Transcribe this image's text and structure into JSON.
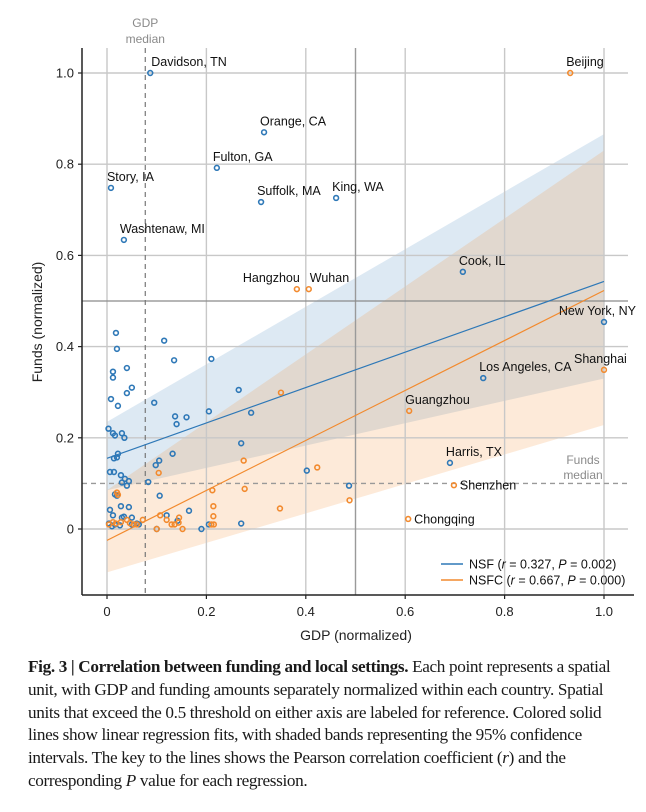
{
  "chart_data": {
    "type": "scatter",
    "title": "",
    "xlabel": "GDP (normalized)",
    "ylabel": "Funds (normalized)",
    "xlim": [
      -0.05,
      1.05
    ],
    "ylim": [
      -0.14,
      1.05
    ],
    "xticks": [
      0,
      0.2,
      0.4,
      0.6,
      0.8,
      1.0
    ],
    "xtick_labels": [
      "0",
      "0.2",
      "0.4",
      "0.6",
      "0.8",
      "1.0"
    ],
    "yticks": [
      0,
      0.2,
      0.4,
      0.6,
      0.8,
      1.0
    ],
    "ytick_labels": [
      "0",
      "0.2",
      "0.4",
      "0.6",
      "0.8",
      "1.0"
    ],
    "grid": true,
    "threshold": 0.5,
    "medians": {
      "gdp": 0.077,
      "gdp_label_line1": "GDP",
      "gdp_label_line2": "median",
      "funds": 0.1,
      "funds_label_line1": "Funds",
      "funds_label_line2": "median"
    },
    "legend_position": "bottom-right",
    "series": [
      {
        "name": "NSF",
        "legend": "NSF (r = 0.327, P = 0.002)",
        "legend_prefix": "NSF (",
        "r": "0.327",
        "p": "0.002",
        "color": "#2e78b7",
        "band_color": "#cfe0f0",
        "fit": {
          "x0": 0.0,
          "y0": 0.155,
          "x1": 1.0,
          "y1": 0.543
        },
        "ci": {
          "x": [
            0.0,
            1.0
          ],
          "lower": [
            0.085,
            0.33
          ],
          "upper": [
            0.235,
            0.866
          ]
        },
        "labeled_points": [
          {
            "name": "Davidson, TN",
            "x": 0.087,
            "y": 1.0,
            "anchor": "right-up"
          },
          {
            "name": "Orange, CA",
            "x": 0.316,
            "y": 0.87,
            "anchor": "above"
          },
          {
            "name": "Fulton, GA",
            "x": 0.221,
            "y": 0.792,
            "anchor": "above"
          },
          {
            "name": "Story, IA",
            "x": 0.008,
            "y": 0.748,
            "anchor": "above"
          },
          {
            "name": "Suffolk, MA",
            "x": 0.31,
            "y": 0.717,
            "anchor": "above"
          },
          {
            "name": "King, WA",
            "x": 0.461,
            "y": 0.726,
            "anchor": "above"
          },
          {
            "name": "Washtenaw, MI",
            "x": 0.034,
            "y": 0.634,
            "anchor": "above"
          },
          {
            "name": "Cook, IL",
            "x": 0.716,
            "y": 0.564,
            "anchor": "above"
          },
          {
            "name": "New York, NY",
            "x": 1.0,
            "y": 0.454,
            "anchor": "above-left"
          },
          {
            "name": "Los Angeles, CA",
            "x": 0.757,
            "y": 0.331,
            "anchor": "above"
          },
          {
            "name": "Harris, TX",
            "x": 0.69,
            "y": 0.145,
            "anchor": "above"
          }
        ],
        "points": [
          [
            0.018,
            0.43
          ],
          [
            0.02,
            0.395
          ],
          [
            0.012,
            0.345
          ],
          [
            0.012,
            0.332
          ],
          [
            0.04,
            0.353
          ],
          [
            0.05,
            0.31
          ],
          [
            0.04,
            0.298
          ],
          [
            0.008,
            0.285
          ],
          [
            0.022,
            0.27
          ],
          [
            0.003,
            0.22
          ],
          [
            0.012,
            0.21
          ],
          [
            0.016,
            0.205
          ],
          [
            0.03,
            0.21
          ],
          [
            0.035,
            0.2
          ],
          [
            0.022,
            0.165
          ],
          [
            0.014,
            0.155
          ],
          [
            0.02,
            0.157
          ],
          [
            0.006,
            0.125
          ],
          [
            0.014,
            0.125
          ],
          [
            0.028,
            0.118
          ],
          [
            0.036,
            0.11
          ],
          [
            0.03,
            0.102
          ],
          [
            0.044,
            0.105
          ],
          [
            0.04,
            0.095
          ],
          [
            0.016,
            0.076
          ],
          [
            0.02,
            0.073
          ],
          [
            0.028,
            0.05
          ],
          [
            0.044,
            0.048
          ],
          [
            0.006,
            0.042
          ],
          [
            0.012,
            0.03
          ],
          [
            0.03,
            0.025
          ],
          [
            0.034,
            0.027
          ],
          [
            0.05,
            0.025
          ],
          [
            0.004,
            0.012
          ],
          [
            0.01,
            0.006
          ],
          [
            0.016,
            0.01
          ],
          [
            0.026,
            0.008
          ],
          [
            0.05,
            0.01
          ],
          [
            0.06,
            0.012
          ],
          [
            0.064,
            0.01
          ],
          [
            0.083,
            0.103
          ],
          [
            0.095,
            0.277
          ],
          [
            0.115,
            0.413
          ],
          [
            0.135,
            0.37
          ],
          [
            0.137,
            0.247
          ],
          [
            0.14,
            0.23
          ],
          [
            0.16,
            0.245
          ],
          [
            0.132,
            0.165
          ],
          [
            0.21,
            0.373
          ],
          [
            0.205,
            0.258
          ],
          [
            0.265,
            0.305
          ],
          [
            0.29,
            0.255
          ],
          [
            0.105,
            0.15
          ],
          [
            0.098,
            0.14
          ],
          [
            0.106,
            0.073
          ],
          [
            0.12,
            0.03
          ],
          [
            0.142,
            0.018
          ],
          [
            0.19,
            0.0
          ],
          [
            0.1,
            0.0
          ],
          [
            0.165,
            0.04
          ],
          [
            0.27,
            0.188
          ],
          [
            0.27,
            0.012
          ],
          [
            0.402,
            0.128
          ],
          [
            0.487,
            0.095
          ],
          [
            0.205,
            0.01
          ]
        ]
      },
      {
        "name": "NSFC",
        "legend": "NSFC (r = 0.667, P = 0.000)",
        "legend_prefix": "NSFC (",
        "r": "0.667",
        "p": "0.000",
        "color": "#f28a2e",
        "band_color": "#fde6d2",
        "fit": {
          "x0": 0.0,
          "y0": -0.025,
          "x1": 1.0,
          "y1": 0.523
        },
        "ci": {
          "x": [
            0.0,
            1.0
          ],
          "lower": [
            -0.095,
            0.228
          ],
          "upper": [
            0.085,
            0.83
          ]
        },
        "labeled_points": [
          {
            "name": "Beijing",
            "x": 0.932,
            "y": 1.0,
            "anchor": "above"
          },
          {
            "name": "Hangzhou",
            "x": 0.382,
            "y": 0.526,
            "anchor": "above-left"
          },
          {
            "name": "Wuhan",
            "x": 0.406,
            "y": 0.526,
            "anchor": "above-right"
          },
          {
            "name": "Shanghai",
            "x": 1.0,
            "y": 0.349,
            "anchor": "above"
          },
          {
            "name": "Guangzhou",
            "x": 0.608,
            "y": 0.259,
            "anchor": "above"
          },
          {
            "name": "Shenzhen",
            "x": 0.698,
            "y": 0.096,
            "anchor": "right"
          },
          {
            "name": "Chongqing",
            "x": 0.606,
            "y": 0.022,
            "anchor": "right"
          }
        ],
        "points": [
          [
            0.02,
            0.08
          ],
          [
            0.022,
            0.075
          ],
          [
            0.004,
            0.01
          ],
          [
            0.012,
            0.015
          ],
          [
            0.018,
            0.012
          ],
          [
            0.028,
            0.015
          ],
          [
            0.04,
            0.02
          ],
          [
            0.046,
            0.013
          ],
          [
            0.054,
            0.01
          ],
          [
            0.06,
            0.01
          ],
          [
            0.072,
            0.02
          ],
          [
            0.104,
            0.123
          ],
          [
            0.107,
            0.03
          ],
          [
            0.12,
            0.02
          ],
          [
            0.136,
            0.01
          ],
          [
            0.13,
            0.01
          ],
          [
            0.144,
            0.014
          ],
          [
            0.152,
            0.0
          ],
          [
            0.145,
            0.025
          ],
          [
            0.212,
            0.085
          ],
          [
            0.214,
            0.05
          ],
          [
            0.214,
            0.028
          ],
          [
            0.215,
            0.01
          ],
          [
            0.275,
            0.15
          ],
          [
            0.277,
            0.088
          ],
          [
            0.35,
            0.299
          ],
          [
            0.348,
            0.045
          ],
          [
            0.423,
            0.135
          ],
          [
            0.488,
            0.063
          ],
          [
            0.21,
            0.01
          ],
          [
            0.1,
            0.0
          ]
        ]
      }
    ]
  },
  "caption": {
    "fig_label": "Fig. 3 | Correlation between funding and local settings.",
    "text_1": " Each point represents a spatial unit, with GDP and funding amounts separately normalized within each country. Spatial units that exceed the 0.5 threshold on either axis are labeled for reference. Colored solid lines show linear regression fits, with shaded bands representing the 95% confidence intervals. The key to the lines shows the Pearson correlation coefficient (",
    "r_symbol": "r",
    "text_2": ") and the corresponding ",
    "p_symbol": "P",
    "text_3": " value for each regression."
  }
}
